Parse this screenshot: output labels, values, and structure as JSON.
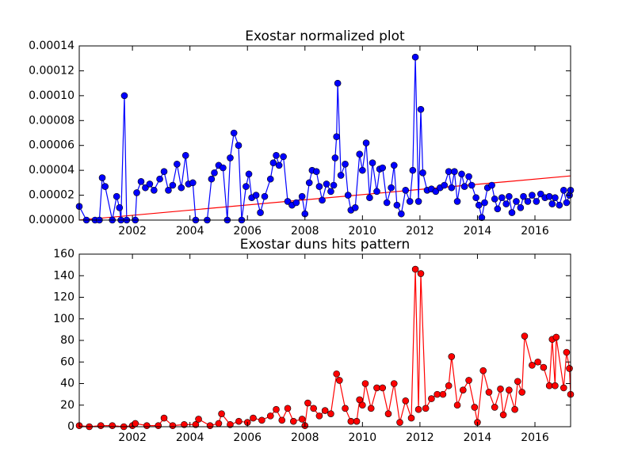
{
  "chart_data": [
    {
      "type": "line",
      "title": "Exostar normalized plot",
      "x": [
        2000.15,
        2000.4,
        2000.7,
        2000.85,
        2000.95,
        2001.05,
        2001.3,
        2001.45,
        2001.55,
        2001.6,
        2001.72,
        2001.8,
        2002.1,
        2002.15,
        2002.3,
        2002.45,
        2002.6,
        2002.75,
        2002.95,
        2003.1,
        2003.25,
        2003.4,
        2003.55,
        2003.7,
        2003.85,
        2003.95,
        2004.1,
        2004.2,
        2004.6,
        2004.75,
        2004.85,
        2005.0,
        2005.15,
        2005.3,
        2005.4,
        2005.53,
        2005.69,
        2005.8,
        2005.95,
        2006.05,
        2006.15,
        2006.3,
        2006.45,
        2006.6,
        2006.8,
        2006.9,
        2007.0,
        2007.1,
        2007.25,
        2007.4,
        2007.55,
        2007.7,
        2007.9,
        2008.0,
        2008.15,
        2008.25,
        2008.4,
        2008.5,
        2008.6,
        2008.75,
        2008.9,
        2009.0,
        2009.05,
        2009.1,
        2009.14,
        2009.25,
        2009.4,
        2009.5,
        2009.6,
        2009.75,
        2009.9,
        2010.0,
        2010.13,
        2010.25,
        2010.35,
        2010.5,
        2010.6,
        2010.7,
        2010.85,
        2011.0,
        2011.1,
        2011.2,
        2011.35,
        2011.5,
        2011.65,
        2011.75,
        2011.84,
        2011.95,
        2012.03,
        2012.1,
        2012.25,
        2012.4,
        2012.55,
        2012.7,
        2012.85,
        2013.0,
        2013.1,
        2013.2,
        2013.3,
        2013.45,
        2013.55,
        2013.7,
        2013.8,
        2013.95,
        2014.05,
        2014.15,
        2014.25,
        2014.35,
        2014.5,
        2014.6,
        2014.7,
        2014.85,
        2015.0,
        2015.1,
        2015.2,
        2015.35,
        2015.5,
        2015.6,
        2015.75,
        2015.9,
        2016.05,
        2016.2,
        2016.35,
        2016.5,
        2016.6,
        2016.7,
        2016.85,
        2017.0,
        2017.1,
        2017.2,
        2017.24
      ],
      "series": [
        {
          "color": "#0000ff",
          "values": [
            1.1e-05,
            0,
            0,
            0,
            3.4e-05,
            2.7e-05,
            0,
            1.9e-05,
            1e-05,
            0,
            0.0001,
            0,
            0,
            2.2e-05,
            3.1e-05,
            2.6e-05,
            2.9e-05,
            2.4e-05,
            3.3e-05,
            3.9e-05,
            2.4e-05,
            2.8e-05,
            4.5e-05,
            2.6e-05,
            5.2e-05,
            2.9e-05,
            3e-05,
            0,
            0,
            3.3e-05,
            3.8e-05,
            4.4e-05,
            4.2e-05,
            0,
            5e-05,
            7e-05,
            6e-05,
            0,
            2.7e-05,
            3.7e-05,
            1.8e-05,
            2e-05,
            6e-06,
            1.9e-05,
            3.3e-05,
            4.6e-05,
            5.2e-05,
            4.4e-05,
            5.1e-05,
            1.5e-05,
            1.2e-05,
            1.4e-05,
            1.9e-05,
            5e-06,
            3e-05,
            4e-05,
            3.9e-05,
            2.7e-05,
            1.6e-05,
            2.9e-05,
            2.3e-05,
            2.8e-05,
            5e-05,
            6.7e-05,
            0.00011,
            3.6e-05,
            4.5e-05,
            2e-05,
            8e-06,
            1e-05,
            5.3e-05,
            4e-05,
            6.2e-05,
            1.8e-05,
            4.6e-05,
            2.3e-05,
            4.1e-05,
            4.2e-05,
            1.4e-05,
            2.6e-05,
            4.4e-05,
            1.2e-05,
            5e-06,
            2.4e-05,
            1.5e-05,
            4e-05,
            0.000131,
            1.5e-05,
            8.9e-05,
            3.8e-05,
            2.4e-05,
            2.5e-05,
            2.3e-05,
            2.6e-05,
            2.8e-05,
            3.9e-05,
            2.6e-05,
            3.9e-05,
            1.5e-05,
            3.7e-05,
            2.7e-05,
            3.5e-05,
            2.8e-05,
            1.8e-05,
            1.2e-05,
            2e-06,
            1.4e-05,
            2.6e-05,
            2.8e-05,
            1.7e-05,
            9e-06,
            1.8e-05,
            1.3e-05,
            1.9e-05,
            6e-06,
            1.5e-05,
            1e-05,
            1.9e-05,
            1.5e-05,
            2e-05,
            1.5e-05,
            2.1e-05,
            1.8e-05,
            1.9e-05,
            1.3e-05,
            1.8e-05,
            1.2e-05,
            2.4e-05,
            1.4e-05,
            2e-05,
            2.4e-05
          ]
        }
      ],
      "trend": {
        "color": "#ff0000",
        "x": [
          2000.15,
          2017.24
        ],
        "values": [
          0,
          3.55e-05
        ]
      },
      "xlim": [
        2000.15,
        2017.24
      ],
      "xticks": [
        2002,
        2004,
        2006,
        2008,
        2010,
        2012,
        2014,
        2016
      ],
      "ylim": [
        0,
        0.00014
      ],
      "yticks": [
        {
          "value": 0,
          "label": "0.00000"
        },
        {
          "value": 2e-05,
          "label": "0.00002"
        },
        {
          "value": 4e-05,
          "label": "0.00004"
        },
        {
          "value": 6e-05,
          "label": "0.00006"
        },
        {
          "value": 8e-05,
          "label": "0.00008"
        },
        {
          "value": 0.0001,
          "label": "0.00010"
        },
        {
          "value": 0.00012,
          "label": "0.00012"
        },
        {
          "value": 0.00014,
          "label": "0.00014"
        }
      ]
    },
    {
      "type": "line",
      "title": "Exostar duns hits pattern",
      "x": [
        2000.15,
        2000.5,
        2000.9,
        2001.3,
        2001.7,
        2002.0,
        2002.1,
        2002.5,
        2002.9,
        2003.1,
        2003.4,
        2003.8,
        2004.2,
        2004.3,
        2004.7,
        2005.0,
        2005.1,
        2005.4,
        2005.7,
        2006.0,
        2006.2,
        2006.5,
        2006.8,
        2007.0,
        2007.2,
        2007.4,
        2007.6,
        2007.9,
        2008.0,
        2008.1,
        2008.3,
        2008.5,
        2008.7,
        2008.9,
        2009.1,
        2009.2,
        2009.4,
        2009.6,
        2009.8,
        2009.9,
        2010.0,
        2010.1,
        2010.3,
        2010.5,
        2010.7,
        2010.9,
        2011.1,
        2011.3,
        2011.5,
        2011.7,
        2011.84,
        2011.95,
        2012.03,
        2012.2,
        2012.4,
        2012.6,
        2012.8,
        2013.0,
        2013.1,
        2013.3,
        2013.5,
        2013.7,
        2013.9,
        2014.0,
        2014.2,
        2014.4,
        2014.6,
        2014.8,
        2014.9,
        2015.1,
        2015.3,
        2015.4,
        2015.55,
        2015.64,
        2015.9,
        2016.1,
        2016.3,
        2016.5,
        2016.6,
        2016.7,
        2016.74,
        2017.0,
        2017.1,
        2017.2,
        2017.24
      ],
      "series": [
        {
          "color": "#ff0000",
          "values": [
            1,
            0,
            1,
            1,
            0,
            1,
            3,
            1,
            1,
            8,
            1,
            2,
            2,
            7,
            1,
            3,
            12,
            2,
            5,
            4,
            8,
            6,
            10,
            16,
            6,
            17,
            5,
            7,
            1,
            22,
            17,
            10,
            15,
            12,
            49,
            43,
            17,
            5,
            5,
            25,
            20,
            40,
            17,
            36,
            36,
            12,
            40,
            4,
            24,
            8,
            146,
            16,
            142,
            17,
            26,
            30,
            30,
            38,
            65,
            20,
            34,
            43,
            18,
            4,
            52,
            32,
            18,
            35,
            11,
            34,
            16,
            42,
            32,
            84,
            57,
            60,
            55,
            38,
            81,
            38,
            83,
            36,
            69,
            54,
            30
          ]
        }
      ],
      "xlim": [
        2000.15,
        2017.24
      ],
      "xticks": [
        2002,
        2004,
        2006,
        2008,
        2010,
        2012,
        2014,
        2016
      ],
      "ylim": [
        0,
        160
      ],
      "yticks": [
        0,
        20,
        40,
        60,
        80,
        100,
        120,
        140,
        160
      ]
    }
  ]
}
